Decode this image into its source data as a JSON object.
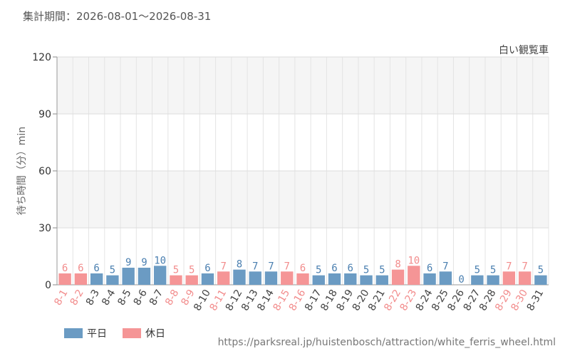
{
  "header": {
    "period": "集計期間：2026-08-01～2026-08-31",
    "attraction": "白い観覧車"
  },
  "footer": {
    "source_url": "https://parksreal.jp/huistenbosch/attraction/white_ferris_wheel.html"
  },
  "colors": {
    "weekday": "#6b9bc3",
    "holiday": "#f59596",
    "weekday_label": "#4a7fb0",
    "holiday_label": "#f28c8c"
  },
  "chart_data": {
    "type": "bar",
    "title": "",
    "xlabel": "",
    "ylabel": "待ち時間（分）min",
    "ylim": [
      0,
      120
    ],
    "yticks": [
      0,
      30,
      60,
      90,
      120
    ],
    "grid": true,
    "legend_position": "bottom-left",
    "categories": [
      "8-1",
      "8-2",
      "8-3",
      "8-4",
      "8-5",
      "8-6",
      "8-7",
      "8-8",
      "8-9",
      "8-10",
      "8-11",
      "8-12",
      "8-13",
      "8-14",
      "8-15",
      "8-16",
      "8-17",
      "8-18",
      "8-19",
      "8-20",
      "8-21",
      "8-22",
      "8-23",
      "8-24",
      "8-25",
      "8-26",
      "8-27",
      "8-28",
      "8-29",
      "8-30",
      "8-31"
    ],
    "values": [
      6,
      6,
      6,
      5,
      9,
      9,
      10,
      5,
      5,
      6,
      7,
      8,
      7,
      7,
      7,
      6,
      5,
      6,
      6,
      5,
      5,
      8,
      10,
      6,
      7,
      0,
      5,
      5,
      7,
      7,
      5
    ],
    "day_type": [
      "holiday",
      "holiday",
      "weekday",
      "weekday",
      "weekday",
      "weekday",
      "weekday",
      "holiday",
      "holiday",
      "weekday",
      "holiday",
      "weekday",
      "weekday",
      "weekday",
      "holiday",
      "holiday",
      "weekday",
      "weekday",
      "weekday",
      "weekday",
      "weekday",
      "holiday",
      "holiday",
      "weekday",
      "weekday",
      "weekday",
      "weekday",
      "weekday",
      "holiday",
      "holiday",
      "weekday"
    ],
    "series": [
      {
        "name": "平日",
        "key": "weekday"
      },
      {
        "name": "休日",
        "key": "holiday"
      }
    ]
  }
}
